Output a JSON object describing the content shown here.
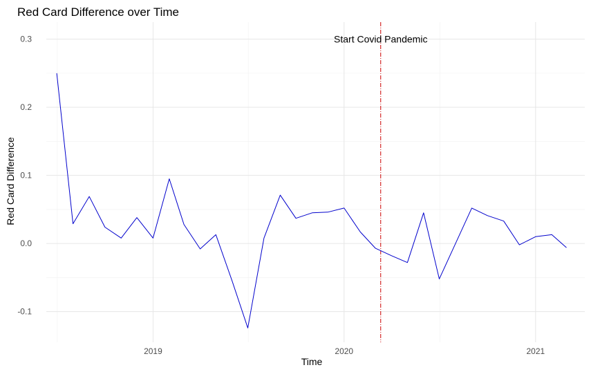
{
  "chart_data": {
    "type": "line",
    "title": "Red Card Difference over Time",
    "xlabel": "Time",
    "ylabel": "Red Card Difference",
    "x_tick_labels": [
      "2019",
      "2020",
      "2021"
    ],
    "y_tick_labels": [
      "-0.1",
      "0.0",
      "0.1",
      "0.2",
      "0.3"
    ],
    "x_ticks": [
      "2019-01-01",
      "2020-01-01",
      "2021-01-01"
    ],
    "y_ticks": [
      -0.1,
      0.0,
      0.1,
      0.2,
      0.3
    ],
    "xlim": [
      "2018-06-11",
      "2021-04-05"
    ],
    "ylim": [
      -0.145,
      0.325
    ],
    "grid": true,
    "legend": "none",
    "line_color": "#0000cc",
    "series": [
      {
        "x": [
          "2018-07-01",
          "2018-08-01",
          "2018-09-01",
          "2018-10-01",
          "2018-11-01",
          "2018-12-01",
          "2019-01-01",
          "2019-02-01",
          "2019-03-01",
          "2019-04-01",
          "2019-05-01",
          "2019-06-01",
          "2019-07-01",
          "2019-08-01",
          "2019-09-01",
          "2019-10-01",
          "2019-11-01",
          "2019-12-01",
          "2020-01-01",
          "2020-02-01",
          "2020-03-01",
          "2020-04-01",
          "2020-05-01",
          "2020-06-01",
          "2020-07-01",
          "2020-08-01",
          "2020-09-01",
          "2020-10-01",
          "2020-11-01",
          "2020-12-01",
          "2021-01-01",
          "2021-02-01",
          "2021-03-01"
        ],
        "values": [
          0.25,
          0.029,
          0.069,
          0.024,
          0.008,
          0.038,
          0.008,
          0.095,
          0.028,
          -0.008,
          0.013,
          -0.055,
          -0.124,
          0.008,
          0.071,
          0.037,
          0.045,
          0.046,
          0.052,
          0.017,
          -0.007,
          -0.018,
          -0.028,
          0.045,
          -0.052,
          0.0,
          0.052,
          0.041,
          0.033,
          -0.002,
          0.01,
          0.013,
          -0.006
        ]
      }
    ],
    "annotations": [
      {
        "type": "vline",
        "x": "2020-03-11",
        "color": "#cc0000",
        "style": "dashdot",
        "label": "Start Covid Pandemic",
        "label_y": 0.3
      }
    ]
  }
}
